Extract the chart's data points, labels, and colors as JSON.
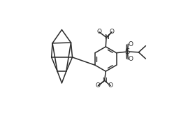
{
  "bg_color": "#ffffff",
  "line_color": "#2a2a2a",
  "line_width": 1.1,
  "fig_width": 2.59,
  "fig_height": 1.69,
  "dpi": 100,
  "xlim": [
    -0.05,
    1.05
  ],
  "ylim": [
    0.0,
    1.0
  ]
}
